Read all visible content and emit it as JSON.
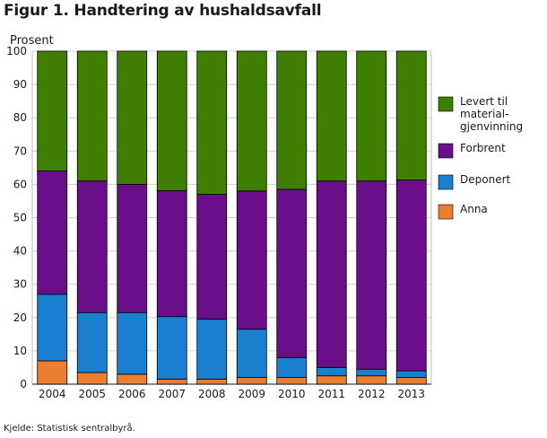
{
  "title": "Figur 1. Handtering av hushaldsavfall",
  "source": "Kjelde: Statistisk sentralbyrå.",
  "chart_data": {
    "type": "bar",
    "stacked": true,
    "ylabel": "Prosent",
    "xlabel": "",
    "ylim": [
      0,
      100
    ],
    "yticks": [
      0,
      10,
      20,
      30,
      40,
      50,
      60,
      70,
      80,
      90,
      100
    ],
    "grid": true,
    "legend_position": "right",
    "categories": [
      "2004",
      "2005",
      "2006",
      "2007",
      "2008",
      "2009",
      "2010",
      "2011",
      "2012",
      "2013"
    ],
    "series": [
      {
        "name": "Anna",
        "color": "#ed7d31",
        "values": [
          7,
          3.5,
          3,
          1.5,
          1.5,
          2,
          2,
          2.5,
          2.5,
          2
        ]
      },
      {
        "name": "Deponert",
        "color": "#1a7fd0",
        "values": [
          20,
          18,
          18.5,
          18.8,
          18,
          14.5,
          6,
          2.5,
          2,
          2
        ]
      },
      {
        "name": "Forbrent",
        "color": "#6a0e8a",
        "values": [
          37,
          39.5,
          38.5,
          37.8,
          37.5,
          41.5,
          50.5,
          56,
          56.5,
          57.3
        ]
      },
      {
        "name": "Levert til material-gjenvinning",
        "color": "#3e7f02",
        "values": [
          36,
          39,
          40,
          41.9,
          43,
          42,
          41.5,
          39,
          39,
          38.7
        ]
      }
    ],
    "legend": [
      {
        "series": "Levert til material-gjenvinning",
        "lines": [
          "Levert til",
          "material-",
          "gjenvinning"
        ]
      },
      {
        "series": "Forbrent",
        "lines": [
          "Forbrent"
        ]
      },
      {
        "series": "Deponert",
        "lines": [
          "Deponert"
        ]
      },
      {
        "series": "Anna",
        "lines": [
          "Anna"
        ]
      }
    ]
  }
}
